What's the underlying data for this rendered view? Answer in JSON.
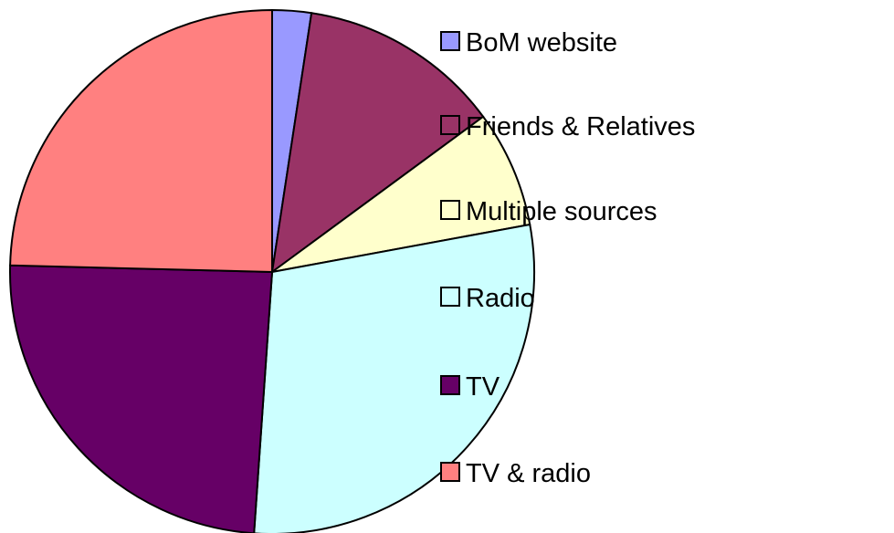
{
  "chart_data": {
    "type": "pie",
    "categories": [
      "BoM website",
      "Friends & Relatives",
      "Multiple sources",
      "Radio",
      "TV",
      "TV & radio"
    ],
    "values": [
      2.4,
      12.5,
      7.2,
      29,
      24.3,
      24.6
    ],
    "colors": [
      "#9999ff",
      "#993366",
      "#ffffcc",
      "#ccffff",
      "#660066",
      "#ff8080"
    ]
  }
}
